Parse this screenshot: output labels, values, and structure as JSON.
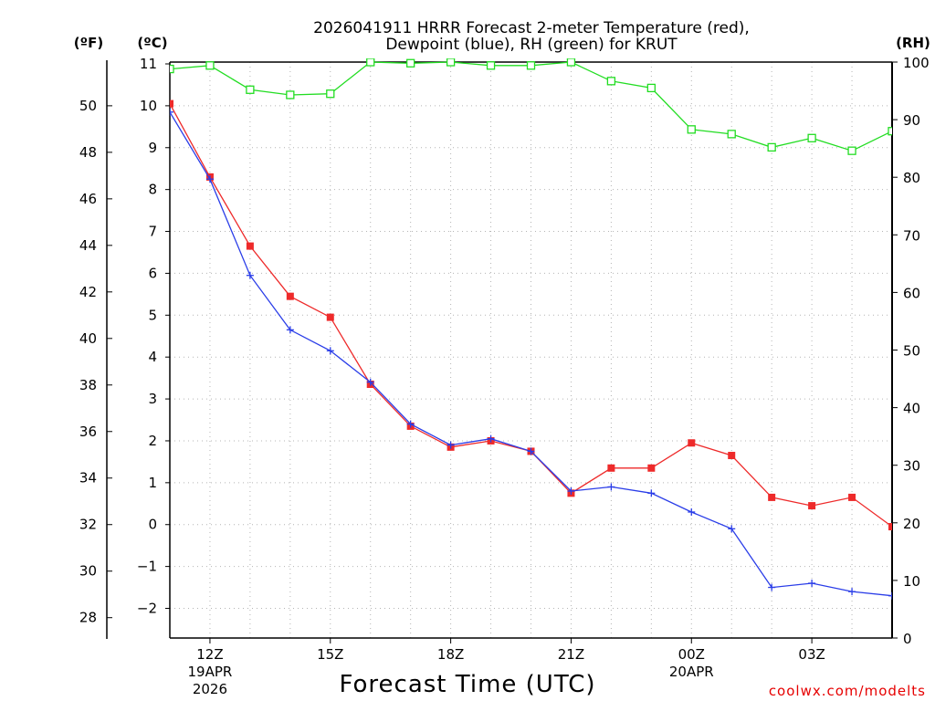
{
  "chart_data": {
    "type": "line",
    "title_line1": "2026041911 HRRR Forecast 2-meter Temperature (red),",
    "title_line2": "Dewpoint (blue), RH (green) for KRUT",
    "xlabel": "Forecast Time (UTC)",
    "credit": "coolwx.com/modelts",
    "units": {
      "fahrenheit": "(ºF)",
      "celsius": "(ºC)",
      "rh": "(RH)"
    },
    "x_hours": [
      11,
      12,
      13,
      14,
      15,
      16,
      17,
      18,
      19,
      20,
      21,
      22,
      23,
      24,
      25,
      26,
      27,
      28,
      29
    ],
    "x_range": [
      11,
      29
    ],
    "x_ticks": [
      {
        "hour": 12,
        "label": "12Z",
        "date": "19APR",
        "year": "2026"
      },
      {
        "hour": 15,
        "label": "15Z",
        "date": "",
        "year": ""
      },
      {
        "hour": 18,
        "label": "18Z",
        "date": "",
        "year": ""
      },
      {
        "hour": 21,
        "label": "21Z",
        "date": "",
        "year": ""
      },
      {
        "hour": 24,
        "label": "00Z",
        "date": "20APR",
        "year": ""
      },
      {
        "hour": 27,
        "label": "03Z",
        "date": "",
        "year": ""
      }
    ],
    "y_celsius_range": [
      -2.7,
      11
    ],
    "y_celsius_ticks": [
      {
        "value": 11,
        "label": "11"
      },
      {
        "value": 10,
        "label": "10"
      },
      {
        "value": 9,
        "label": "9"
      },
      {
        "value": 8,
        "label": "8"
      },
      {
        "value": 7,
        "label": "7"
      },
      {
        "value": 6,
        "label": "6"
      },
      {
        "value": 5,
        "label": "5"
      },
      {
        "value": 4,
        "label": "4"
      },
      {
        "value": 3,
        "label": "3"
      },
      {
        "value": 2,
        "label": "2"
      },
      {
        "value": 1,
        "label": "1"
      },
      {
        "value": 0,
        "label": "0"
      },
      {
        "value": -1,
        "label": "−1"
      },
      {
        "value": -2,
        "label": "−2"
      }
    ],
    "y_fahrenheit_ticks": [
      {
        "value": 50,
        "label": "50"
      },
      {
        "value": 48,
        "label": "48"
      },
      {
        "value": 46,
        "label": "46"
      },
      {
        "value": 44,
        "label": "44"
      },
      {
        "value": 42,
        "label": "42"
      },
      {
        "value": 40,
        "label": "40"
      },
      {
        "value": 38,
        "label": "38"
      },
      {
        "value": 36,
        "label": "36"
      },
      {
        "value": 34,
        "label": "34"
      },
      {
        "value": 32,
        "label": "32"
      },
      {
        "value": 30,
        "label": "30"
      },
      {
        "value": 28,
        "label": "28"
      }
    ],
    "y_rh_range": [
      0,
      100
    ],
    "y_rh_ticks": [
      {
        "value": 100,
        "label": "100"
      },
      {
        "value": 90,
        "label": "90"
      },
      {
        "value": 80,
        "label": "80"
      },
      {
        "value": 70,
        "label": "70"
      },
      {
        "value": 60,
        "label": "60"
      },
      {
        "value": 50,
        "label": "50"
      },
      {
        "value": 40,
        "label": "40"
      },
      {
        "value": 30,
        "label": "30"
      },
      {
        "value": 20,
        "label": "20"
      },
      {
        "value": 10,
        "label": "10"
      },
      {
        "value": 0,
        "label": "0"
      }
    ],
    "grid": true,
    "series": [
      {
        "name": "Temperature",
        "axis": "celsius",
        "color": "#ee2a2a",
        "marker": "filled-square",
        "values": [
          10.05,
          8.3,
          6.65,
          5.45,
          4.95,
          3.35,
          2.35,
          1.85,
          2.0,
          1.75,
          0.75,
          1.35,
          1.35,
          1.95,
          1.65,
          0.65,
          0.45,
          0.65,
          -0.05
        ]
      },
      {
        "name": "Dewpoint",
        "axis": "celsius",
        "color": "#2a3de8",
        "marker": "plus",
        "values": [
          9.85,
          8.25,
          5.95,
          4.65,
          4.15,
          3.4,
          2.4,
          1.9,
          2.05,
          1.75,
          0.8,
          0.9,
          0.75,
          0.3,
          -0.1,
          -1.5,
          -1.4,
          -1.6,
          -1.7
        ]
      },
      {
        "name": "RH",
        "axis": "rh",
        "color": "#22dd22",
        "marker": "open-square",
        "values": [
          98.8,
          99.4,
          95.2,
          94.3,
          94.5,
          100,
          99.8,
          100,
          99.4,
          99.4,
          100,
          96.7,
          95.5,
          88.3,
          87.5,
          85.2,
          86.8,
          84.6,
          88.0
        ]
      }
    ]
  }
}
